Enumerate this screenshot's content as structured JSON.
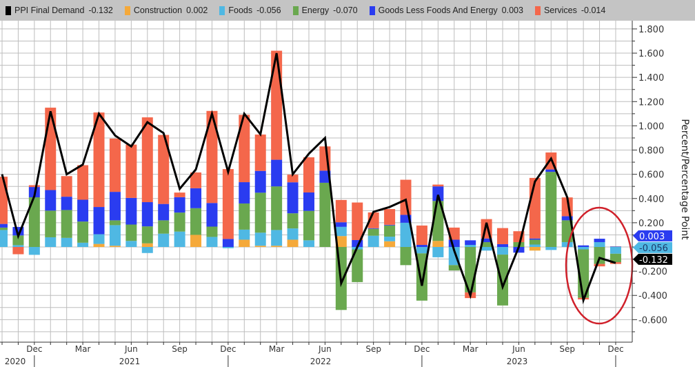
{
  "legend": [
    {
      "name": "PPI Final Demand",
      "value": "-0.132",
      "color": "#000000"
    },
    {
      "name": "Construction",
      "value": "0.002",
      "color": "#f5a93a"
    },
    {
      "name": "Foods",
      "value": "-0.056",
      "color": "#4fb8e3"
    },
    {
      "name": "Energy",
      "value": "-0.070",
      "color": "#6aa84f"
    },
    {
      "name": "Goods Less Foods And Energy",
      "value": "0.003",
      "color": "#2a3cf0"
    },
    {
      "name": "Services",
      "value": "-0.014",
      "color": "#f4674b"
    }
  ],
  "chart_data": {
    "type": "bar",
    "stacked": true,
    "ylabel": "Percent/Percentage Point",
    "ylim": [
      -0.786,
      1.865
    ],
    "yticks": [
      "1.800",
      "1.600",
      "1.400",
      "1.200",
      "1.000",
      "0.800",
      "0.600",
      "0.400",
      "0.200",
      "-0.200",
      "-0.400",
      "-0.600"
    ],
    "grid": true,
    "legend_position": "top",
    "categories": [
      "2020-10",
      "2020-11",
      "2020-12",
      "2021-01",
      "2021-02",
      "2021-03",
      "2021-04",
      "2021-05",
      "2021-06",
      "2021-07",
      "2021-08",
      "2021-09",
      "2021-10",
      "2021-11",
      "2021-12",
      "2022-01",
      "2022-02",
      "2022-03",
      "2022-04",
      "2022-05",
      "2022-06",
      "2022-07",
      "2022-08",
      "2022-09",
      "2022-10",
      "2022-11",
      "2022-12",
      "2023-01",
      "2023-02",
      "2023-03",
      "2023-04",
      "2023-05",
      "2023-06",
      "2023-07",
      "2023-08",
      "2023-09",
      "2023-10",
      "2023-11",
      "2023-12"
    ],
    "x_tick_labels": [
      {
        "index": 2,
        "label": "Dec"
      },
      {
        "index": 5,
        "label": "Mar"
      },
      {
        "index": 8,
        "label": "Jun"
      },
      {
        "index": 11,
        "label": "Sep"
      },
      {
        "index": 14,
        "label": "Dec"
      },
      {
        "index": 17,
        "label": "Mar"
      },
      {
        "index": 20,
        "label": "Jun"
      },
      {
        "index": 23,
        "label": "Sep"
      },
      {
        "index": 26,
        "label": "Dec"
      },
      {
        "index": 29,
        "label": "Mar"
      },
      {
        "index": 32,
        "label": "Jun"
      },
      {
        "index": 35,
        "label": "Sep"
      },
      {
        "index": 38,
        "label": "Dec"
      }
    ],
    "year_labels": [
      "2020",
      "2021",
      "2022",
      "2023"
    ],
    "series": [
      {
        "name": "Construction",
        "color": "#f5a93a",
        "values": [
          0,
          0,
          0,
          0,
          0,
          0,
          0.025,
          0.01,
          0,
          0.03,
          0,
          0,
          0.1,
          0,
          0,
          0.06,
          0.01,
          0.01,
          0.06,
          0,
          0,
          0.09,
          0,
          0,
          0.047,
          0,
          0,
          0.05,
          0,
          0,
          0,
          0,
          0,
          -0.03,
          0,
          0,
          0,
          0,
          0.002
        ]
      },
      {
        "name": "Foods",
        "color": "#4fb8e3",
        "values": [
          0.14,
          0.015,
          -0.065,
          0.08,
          0.075,
          0.035,
          0.08,
          0.17,
          0.05,
          -0.05,
          0.11,
          0.127,
          0,
          0.083,
          -0.01,
          0.083,
          0.108,
          0.13,
          0.093,
          0.055,
          0,
          0.076,
          -0.02,
          0.093,
          0.038,
          0.2,
          -0.053,
          -0.085,
          -0.15,
          0.017,
          -0.03,
          -0.063,
          0,
          0.02,
          -0.025,
          0.04,
          -0.02,
          0.04,
          -0.056
        ]
      },
      {
        "name": "Energy",
        "color": "#6aa84f",
        "values": [
          0.02,
          0.08,
          0.41,
          0.22,
          0.23,
          0.175,
          0,
          0.04,
          0.135,
          0.14,
          0.11,
          0.157,
          0.22,
          0.085,
          0,
          0.216,
          0.33,
          0.36,
          0.125,
          0.243,
          0.53,
          -0.52,
          -0.27,
          0.057,
          0.093,
          -0.15,
          -0.39,
          0.33,
          -0.044,
          -0.375,
          0.04,
          -0.42,
          0.04,
          0.04,
          0.62,
          0.18,
          -0.4,
          -0.14,
          -0.07
        ]
      },
      {
        "name": "Goods Less Foods And Energy",
        "color": "#2a3cf0",
        "values": [
          0.03,
          0.07,
          0.085,
          0.17,
          0.11,
          0.18,
          0.225,
          0.235,
          0.22,
          0.2,
          0.135,
          0.127,
          0.165,
          0.195,
          0.066,
          0.176,
          0.18,
          0.22,
          0.256,
          0.152,
          0.1,
          0.038,
          0.057,
          0.005,
          0.005,
          0.065,
          0.017,
          0.12,
          0.06,
          0.038,
          0.03,
          0.023,
          -0.047,
          0.01,
          0.02,
          0.034,
          0.013,
          0.028,
          0.003
        ]
      },
      {
        "name": "Services",
        "color": "#f4674b",
        "values": [
          0.39,
          -0.06,
          0.015,
          0.68,
          0.17,
          0.285,
          0.78,
          0.44,
          0.44,
          0.7,
          0.57,
          0.038,
          0.13,
          0.76,
          0.577,
          0.556,
          0.3,
          0.9,
          0.063,
          0.29,
          0.2,
          0.184,
          0.31,
          0.13,
          0.13,
          0.29,
          0.16,
          0.015,
          0.1,
          -0.047,
          0.16,
          0.133,
          0.09,
          0.5,
          0.14,
          0.155,
          -0.013,
          -0.02,
          -0.014
        ]
      }
    ],
    "line": {
      "name": "PPI Final Demand",
      "color": "#000000",
      "values": [
        0.6,
        0.09,
        0.42,
        1.12,
        0.6,
        0.68,
        1.1,
        0.92,
        0.83,
        1.03,
        0.94,
        0.48,
        0.64,
        1.1,
        0.62,
        1.1,
        0.93,
        1.6,
        0.6,
        0.77,
        0.9,
        -0.3,
        0.0,
        0.29,
        0.33,
        0.39,
        -0.32,
        0.43,
        -0.03,
        -0.4,
        0.2,
        -0.33,
        0.0,
        0.54,
        0.73,
        0.41,
        -0.44,
        -0.09,
        -0.132
      ]
    },
    "last_value_tags": [
      {
        "label": "0.003",
        "color": "#2a3cf0"
      },
      {
        "label": "-0.056",
        "color": "#4fb8e3"
      },
      {
        "label": "-0.132",
        "color": "#000000"
      }
    ],
    "annotation": {
      "type": "ellipse",
      "color": "#d0202a",
      "around": [
        "2023-10",
        "2023-11",
        "2023-12"
      ]
    }
  }
}
